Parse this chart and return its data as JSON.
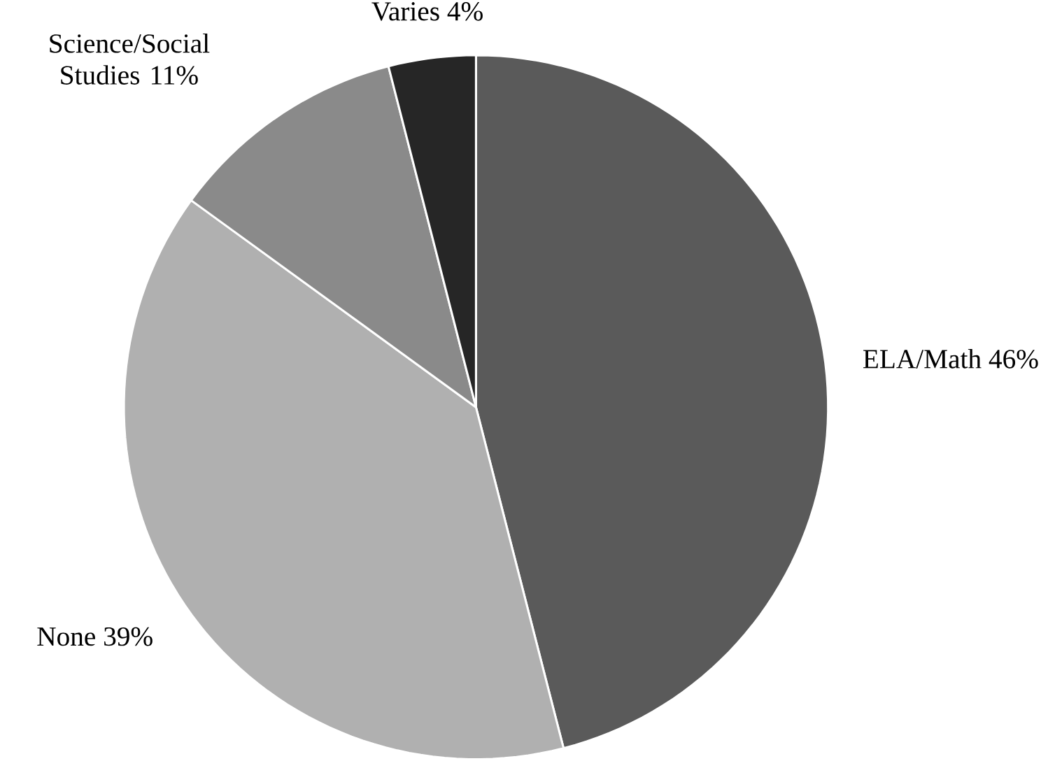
{
  "chart_data": {
    "type": "pie",
    "categories": [
      "ELA/Math",
      "None",
      "Science/Social Studies",
      "Varies"
    ],
    "values": [
      46,
      39,
      11,
      4
    ],
    "value_labels": [
      "46%",
      "39%",
      "11%",
      "4%"
    ],
    "colors": [
      "#5a5a5a",
      "#b0b0b0",
      "#8a8a8a",
      "#262626"
    ]
  }
}
